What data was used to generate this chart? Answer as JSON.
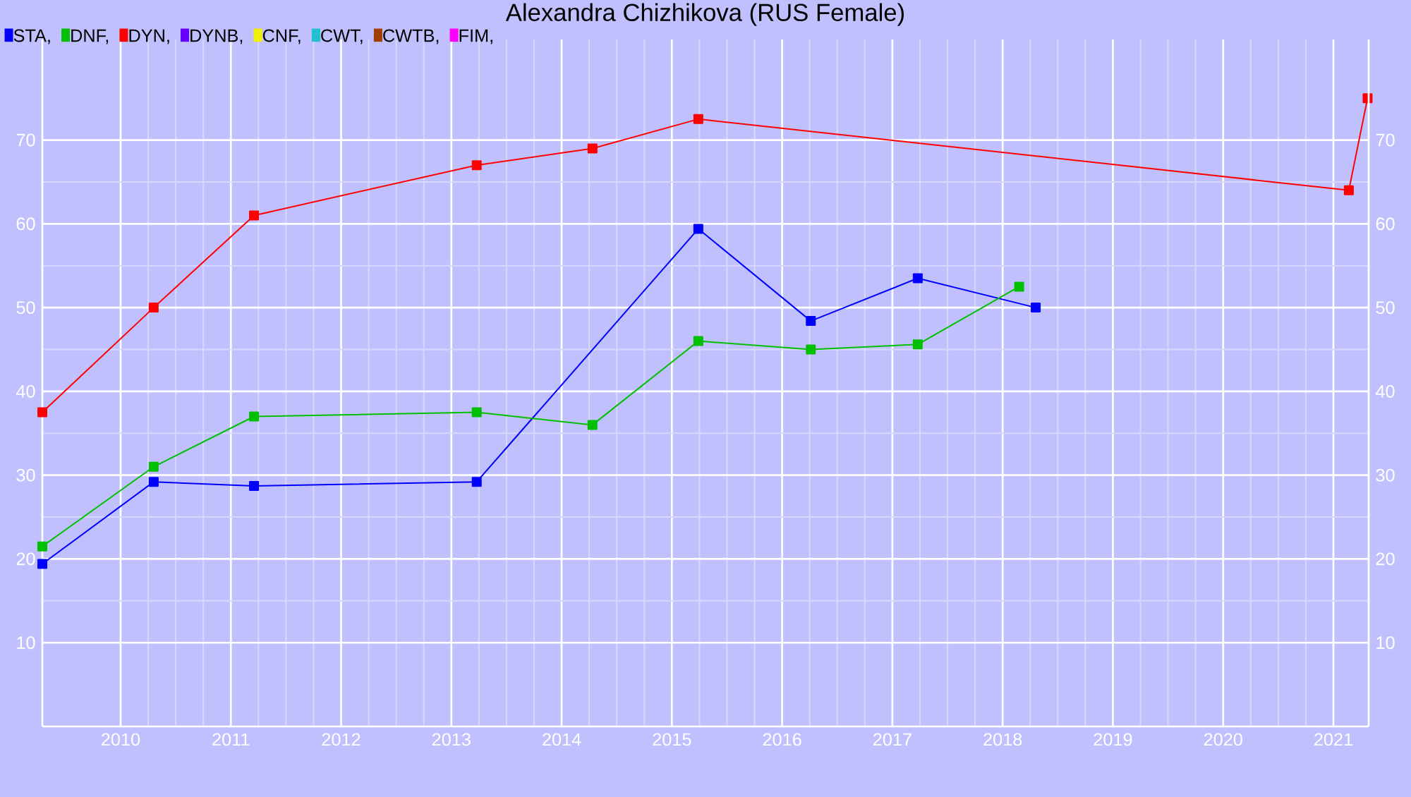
{
  "chart_data": {
    "type": "line",
    "title": "Alexandra Chizhikova (RUS Female)",
    "xlim": [
      2009.29,
      2021.32
    ],
    "xticks": [
      2010,
      2011,
      2012,
      2013,
      2014,
      2015,
      2016,
      2017,
      2018,
      2019,
      2020,
      2021
    ],
    "ylim": [
      0,
      82
    ],
    "yticks": [
      10,
      20,
      30,
      40,
      50,
      60,
      70
    ],
    "y2lim": [
      0,
      82
    ],
    "y2ticks": [
      10,
      20,
      30,
      40,
      50,
      60,
      70
    ],
    "grid": true,
    "legend": "top left",
    "marker": "square",
    "line_style": "solid",
    "series": [
      {
        "name": "STA,",
        "color": "#0000ff",
        "x": [
          2009.29,
          2010.3,
          2011.21,
          2013.23,
          2015.24,
          2016.26,
          2017.23,
          2018.3
        ],
        "values": [
          19.4,
          29.2,
          28.7,
          29.2,
          59.4,
          48.4,
          53.5,
          50
        ]
      },
      {
        "name": "DNF,",
        "color": "#00c000",
        "x": [
          2009.29,
          2010.3,
          2011.21,
          2013.23,
          2014.28,
          2015.24,
          2016.26,
          2017.23,
          2018.15
        ],
        "values": [
          21.5,
          31,
          37,
          37.5,
          36,
          46,
          45,
          45.6,
          52.5
        ]
      },
      {
        "name": "DYN,",
        "color": "#ff0000",
        "x": [
          2009.29,
          2010.3,
          2011.21,
          2013.23,
          2014.28,
          2015.24,
          2021.14,
          2021.31
        ],
        "values": [
          37.5,
          50,
          61,
          67,
          69,
          72.5,
          64,
          75
        ]
      },
      {
        "name": "DYNB,",
        "color": "#6600ff"
      },
      {
        "name": "CNF,",
        "color": "#f0f000"
      },
      {
        "name": "CWT,",
        "color": "#20c0d0"
      },
      {
        "name": "CWTB,",
        "color": "#a04000"
      },
      {
        "name": "FIM,",
        "color": "#ff00ff"
      }
    ]
  }
}
